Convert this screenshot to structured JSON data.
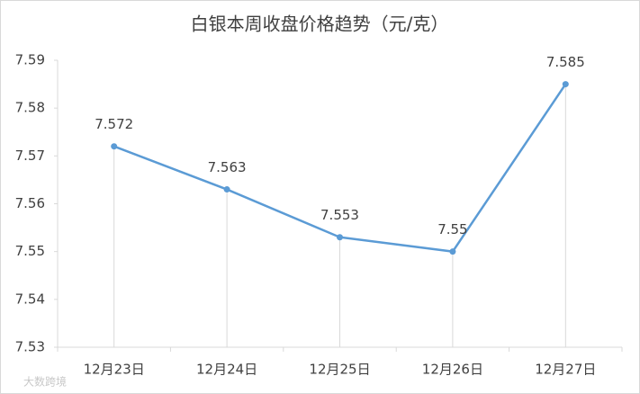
{
  "chart_data": {
    "type": "line",
    "title": "白银本周收盘价格趋势（元/克）",
    "categories": [
      "12月23日",
      "12月24日",
      "12月25日",
      "12月26日",
      "12月27日"
    ],
    "values": [
      7.572,
      7.563,
      7.553,
      7.55,
      7.585
    ],
    "color": "#5b9bd5",
    "ylim": [
      7.53,
      7.59
    ],
    "yticks": [
      7.53,
      7.54,
      7.55,
      7.56,
      7.57,
      7.58,
      7.59
    ],
    "drop_lines": true,
    "watermark": "大数跨境"
  }
}
